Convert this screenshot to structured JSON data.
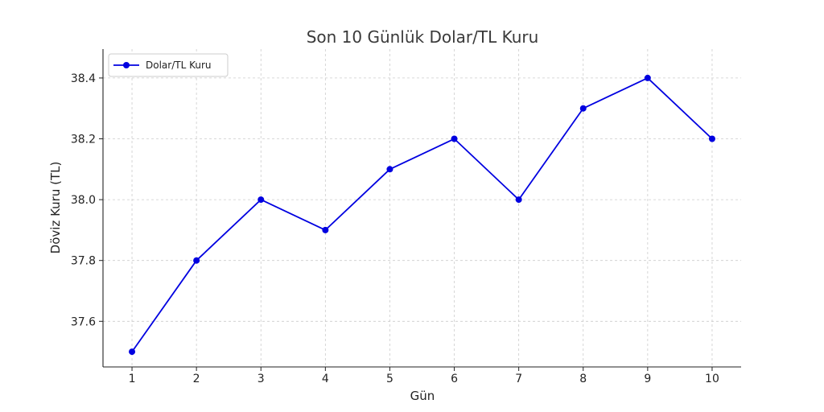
{
  "chart_data": {
    "type": "line",
    "title": "Son 10 Günlük Dolar/TL Kuru",
    "xlabel": "Gün",
    "ylabel": "Döviz Kuru (TL)",
    "x": [
      1,
      2,
      3,
      4,
      5,
      6,
      7,
      8,
      9,
      10
    ],
    "x_tick_labels": [
      "1",
      "2",
      "3",
      "4",
      "5",
      "6",
      "7",
      "8",
      "9",
      "10"
    ],
    "y_ticks": [
      37.6,
      37.8,
      38.0,
      38.2,
      38.4
    ],
    "y_tick_labels": [
      "37.6",
      "37.8",
      "38.0",
      "38.2",
      "38.4"
    ],
    "xlim": [
      0.55,
      10.45
    ],
    "ylim": [
      37.45,
      38.495
    ],
    "grid": true,
    "legend_position": "top-left",
    "series": [
      {
        "name": "Dolar/TL Kuru",
        "color": "#0000e0",
        "marker": "circle",
        "values": [
          37.5,
          37.8,
          38.0,
          37.9,
          38.1,
          38.2,
          38.0,
          38.3,
          38.4,
          38.2
        ]
      }
    ]
  }
}
